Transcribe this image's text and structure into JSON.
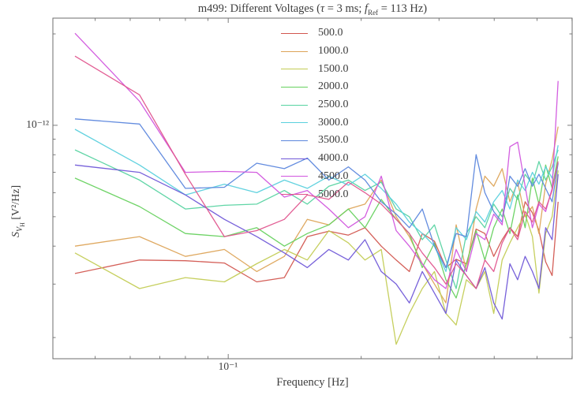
{
  "title": {
    "pre": "m499: Different Voltages (",
    "tau": "τ",
    "mid": " = 3 ms; ",
    "f": "f",
    "fsub": "Ref",
    "post": " = 113 Hz)"
  },
  "xlabel": "Frequency [Hz]",
  "ylabel_parts": {
    "s": "S",
    "sub1": "V",
    "sub2": "H",
    "rest": " [V²/Hz]"
  },
  "xtick_label": "10⁻¹",
  "ytick_label": "10⁻¹²",
  "axis_color": "#6e6e6e",
  "chart_data": {
    "type": "line",
    "title": "m499: Different Voltages (τ = 3 ms; f_Ref = 113 Hz)",
    "xlabel": "Frequency [Hz]",
    "ylabel": "S_{V_H} [V^2/Hz]",
    "xscale": "log",
    "yscale": "log",
    "grid": false,
    "legend_position": "upper-center-left",
    "xlim": [
      0.0401,
      0.6005
    ],
    "ylim": [
      1.703e-13,
      2.254e-12
    ],
    "x_major_ticks": [
      0.1
    ],
    "x_minor_ticks": [
      0.05,
      0.06,
      0.07,
      0.08,
      0.09,
      0.2,
      0.3,
      0.4,
      0.5,
      0.6
    ],
    "y_major_ticks": [
      1e-12
    ],
    "y_minor_ticks": [
      2e-13,
      3e-13,
      4e-13,
      5e-13,
      6e-13,
      7e-13,
      8e-13,
      9e-13,
      2e-12
    ],
    "x": [
      0.045,
      0.063,
      0.08,
      0.098,
      0.116,
      0.134,
      0.151,
      0.169,
      0.187,
      0.204,
      0.222,
      0.24,
      0.257,
      0.275,
      0.293,
      0.311,
      0.328,
      0.346,
      0.364,
      0.381,
      0.399,
      0.417,
      0.434,
      0.452,
      0.47,
      0.488,
      0.505,
      0.523,
      0.541,
      0.558
    ],
    "series": [
      {
        "name": "500.0",
        "color": "#d2564f",
        "values": [
          3.25e-13,
          3.6e-13,
          3.58e-13,
          3.52e-13,
          3.05e-13,
          3.15e-13,
          4.3e-13,
          4.48e-13,
          4.35e-13,
          4.6e-13,
          4e-13,
          3.6e-13,
          3.3e-13,
          4.4e-13,
          4.15e-13,
          3.4e-13,
          3.62e-13,
          3.5e-13,
          4.55e-13,
          4.4e-13,
          3.7e-13,
          4.2e-13,
          4.6e-13,
          4.3e-13,
          5.6e-13,
          5.15e-13,
          4.5e-13,
          3.55e-13,
          3.2e-13,
          5.6e-13
        ]
      },
      {
        "name": "1000.0",
        "color": "#dda458",
        "values": [
          4e-13,
          4.3e-13,
          3.7e-13,
          3.9e-13,
          3.3e-13,
          3.7e-13,
          4.9e-13,
          4.7e-13,
          5.3e-13,
          5.5e-13,
          6.6e-13,
          5e-13,
          4.3e-13,
          3.5e-13,
          3e-13,
          2.6e-13,
          4.7e-13,
          3.3e-13,
          5.3e-13,
          6.8e-13,
          6.3e-13,
          7.2e-13,
          5.6e-13,
          6.5e-13,
          5e-13,
          5.4e-13,
          4.4e-13,
          6.4e-13,
          7.7e-13,
          9.9e-13
        ]
      },
      {
        "name": "1500.0",
        "color": "#c3cc55",
        "values": [
          3.8e-13,
          2.9e-13,
          3.15e-13,
          3.05e-13,
          3.5e-13,
          3.9e-13,
          3.6e-13,
          4.5e-13,
          4.1e-13,
          3.6e-13,
          3.9e-13,
          1.9e-13,
          2.4e-13,
          2.9e-13,
          3.3e-13,
          2.4e-13,
          2.2e-13,
          3.1e-13,
          2.9e-13,
          3.3e-13,
          2.4e-13,
          3.6e-13,
          4.1e-13,
          4.6e-13,
          5.1e-13,
          4.3e-13,
          2.8e-13,
          4.4e-13,
          5e-13,
          7.1e-13
        ]
      },
      {
        "name": "2000.0",
        "color": "#66d15e",
        "values": [
          6.7e-13,
          5.4e-13,
          4.4e-13,
          4.3e-13,
          4.6e-13,
          4e-13,
          4.4e-13,
          4.7e-13,
          5.3e-13,
          4.6e-13,
          5.7e-13,
          4.9e-13,
          4.4e-13,
          3.4e-13,
          4.1e-13,
          3.1e-13,
          2.7e-13,
          3.5e-13,
          4.5e-13,
          3.6e-13,
          4.6e-13,
          5.3e-13,
          4.4e-13,
          5.9e-13,
          4.6e-13,
          6.7e-13,
          5.5e-13,
          7.4e-13,
          6.2e-13,
          7.9e-13
        ]
      },
      {
        "name": "2500.0",
        "color": "#57d3a1",
        "values": [
          8.3e-13,
          6.6e-13,
          5.3e-13,
          5.45e-13,
          5.5e-13,
          6.1e-13,
          5.5e-13,
          6.3e-13,
          6.6e-13,
          6.1e-13,
          6.5e-13,
          5.3e-13,
          5e-13,
          4.2e-13,
          4.7e-13,
          3.6e-13,
          2.9e-13,
          4.4e-13,
          5e-13,
          4.6e-13,
          5.5e-13,
          5e-13,
          6.2e-13,
          5.7e-13,
          6.9e-13,
          6.4e-13,
          7.6e-13,
          6.6e-13,
          7.3e-13,
          8.3e-13
        ]
      },
      {
        "name": "3000.0",
        "color": "#5ad0dd",
        "values": [
          9.7e-13,
          7.4e-13,
          5.9e-13,
          6.4e-13,
          6e-13,
          6.6e-13,
          6.2e-13,
          6.8e-13,
          6.35e-13,
          6.9e-13,
          6.2e-13,
          5.5e-13,
          4.8e-13,
          4.4e-13,
          4e-13,
          3.3e-13,
          4.6e-13,
          4.2e-13,
          5.2e-13,
          4.8e-13,
          5.6e-13,
          6.1e-13,
          5.3e-13,
          6.6e-13,
          6.1e-13,
          7e-13,
          6.4e-13,
          7.3e-13,
          6.7e-13,
          8.6e-13
        ]
      },
      {
        "name": "3500.0",
        "color": "#5b86dd",
        "values": [
          1.05e-12,
          1.01e-12,
          6.2e-13,
          6.25e-13,
          7.5e-13,
          7.2e-13,
          7.8e-13,
          6.6e-13,
          7.3e-13,
          6.6e-13,
          5.6e-13,
          5.1e-13,
          4.6e-13,
          5.3e-13,
          4e-13,
          3.4e-13,
          4.4e-13,
          4.3e-13,
          8e-13,
          6e-13,
          5.2e-13,
          4.8e-13,
          6.8e-13,
          6.3e-13,
          7.2e-13,
          6.3e-13,
          6.9e-13,
          6.2e-13,
          5.6e-13,
          7.5e-13
        ]
      },
      {
        "name": "4000.0",
        "color": "#7058d8",
        "values": [
          7.4e-13,
          7e-13,
          5.9e-13,
          4.9e-13,
          4.3e-13,
          3.8e-13,
          3.4e-13,
          3.9e-13,
          3.6e-13,
          4.2e-13,
          3.3e-13,
          3e-13,
          2.6e-13,
          3.3e-13,
          2.8e-13,
          2.4e-13,
          3.6e-13,
          3.2e-13,
          2.9e-13,
          3.4e-13,
          2.6e-13,
          2.3e-13,
          3.5e-13,
          3.1e-13,
          3.7e-13,
          3.3e-13,
          2.9e-13,
          4.6e-13,
          4.2e-13,
          6.9e-13
        ]
      },
      {
        "name": "4500.0",
        "color": "#d155de",
        "values": [
          2.01e-12,
          1.2e-12,
          7e-13,
          7.05e-13,
          7e-13,
          5.8e-13,
          6.1e-13,
          5.3e-13,
          4.6e-13,
          5e-13,
          6.8e-13,
          4.5e-13,
          4e-13,
          3.5e-13,
          3.1e-13,
          2.9e-13,
          3.9e-13,
          3.3e-13,
          4.4e-13,
          4.2e-13,
          5.1e-13,
          4.7e-13,
          8.5e-13,
          8.8e-13,
          6.3e-13,
          4.6e-13,
          5.5e-13,
          5.2e-13,
          6.2e-13,
          1.4e-12
        ]
      },
      {
        "name": "5000.0",
        "color": "#e0558e",
        "values": [
          1.69e-12,
          1.26e-12,
          6.9e-13,
          4.3e-13,
          4.5e-13,
          4.9e-13,
          5.9e-13,
          5.7e-13,
          6.5e-13,
          6e-13,
          5.5e-13,
          4.9e-13,
          4.4e-13,
          3.8e-13,
          3.4e-13,
          3e-13,
          3.5e-13,
          3.2e-13,
          2.9e-13,
          3.6e-13,
          3.3e-13,
          4.1e-13,
          4.6e-13,
          4.2e-13,
          5.2e-13,
          4.8e-13,
          5.6e-13,
          5.3e-13,
          6.1e-13,
          7.6e-13
        ]
      }
    ]
  }
}
